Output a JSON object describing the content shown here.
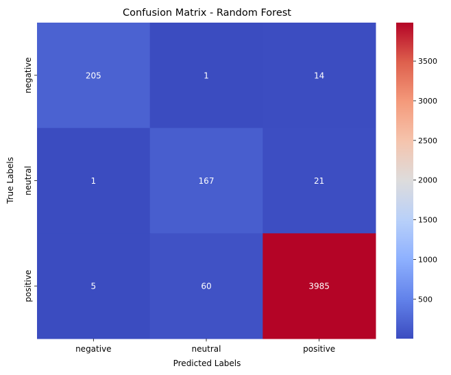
{
  "chart_data": {
    "type": "heatmap",
    "title": "Confusion Matrix - Random Forest",
    "xlabel": "Predicted Labels",
    "ylabel": "True Labels",
    "x_categories": [
      "negative",
      "neutral",
      "positive"
    ],
    "y_categories": [
      "negative",
      "neutral",
      "positive"
    ],
    "values": [
      [
        205,
        1,
        14
      ],
      [
        1,
        167,
        21
      ],
      [
        5,
        60,
        3985
      ]
    ],
    "colormap": "coolwarm",
    "colorbar": {
      "min": 1,
      "max": 3985,
      "ticks": [
        500,
        1000,
        1500,
        2000,
        2500,
        3000,
        3500
      ]
    },
    "grid": false
  }
}
